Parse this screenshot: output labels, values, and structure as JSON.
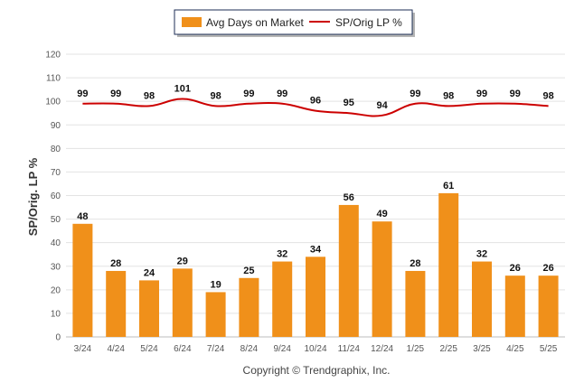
{
  "chart_data": {
    "type": "bar",
    "categories": [
      "3/24",
      "4/24",
      "5/24",
      "6/24",
      "7/24",
      "8/24",
      "9/24",
      "10/24",
      "11/24",
      "12/24",
      "1/25",
      "2/25",
      "3/25",
      "4/25",
      "5/25"
    ],
    "series": [
      {
        "name": "Avg Days on Market",
        "type": "bar",
        "color": "#f0901a",
        "values": [
          48,
          28,
          24,
          29,
          19,
          25,
          32,
          34,
          56,
          49,
          28,
          61,
          32,
          26,
          26
        ]
      },
      {
        "name": "SP/Orig LP %",
        "type": "line",
        "color": "#cc0000",
        "values": [
          99,
          99,
          98,
          101,
          98,
          99,
          99,
          96,
          95,
          94,
          99,
          98,
          99,
          99,
          98
        ]
      }
    ],
    "ylabel": "SP/Orig. LP %",
    "xlabel": "",
    "ylim": [
      0,
      120
    ],
    "yticks": [
      0,
      10,
      20,
      30,
      40,
      50,
      60,
      70,
      80,
      90,
      100,
      110,
      120
    ],
    "grid": true,
    "legend_position": "top-center",
    "credit": "Copyright © Trendgraphix, Inc."
  }
}
